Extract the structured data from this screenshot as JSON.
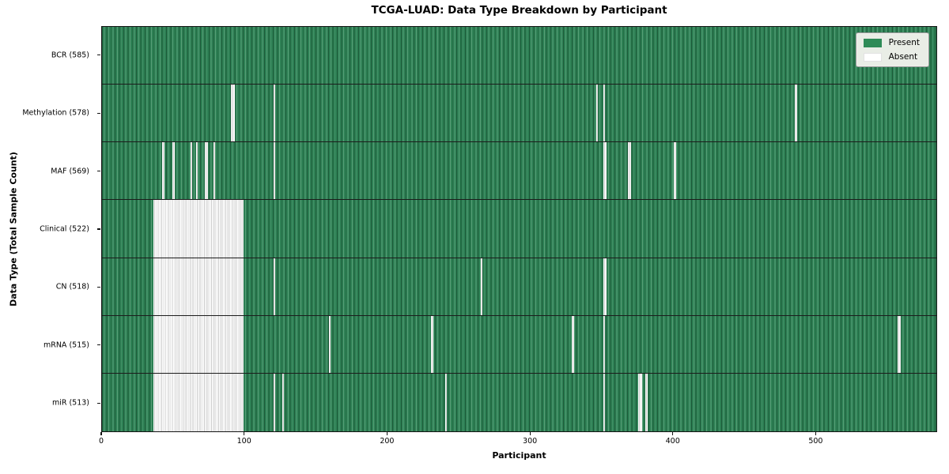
{
  "title": "TCGA-LUAD: Data Type Breakdown by Participant",
  "xlabel": "Participant",
  "ylabel": "Data Type (Total Sample Count)",
  "legend": {
    "present_label": "Present",
    "absent_label": "Absent"
  },
  "colors": {
    "present_green": "#2e8b57",
    "present_green_dark": "#1d5a39",
    "present_green_light": "#579e77",
    "absent_white": "#ffffff",
    "absent_edge": "#cccccc",
    "legend_background": "#e9ede6",
    "axis_line": "#141414"
  },
  "x_axis": {
    "ticks": [
      0,
      100,
      200,
      300,
      400,
      500
    ],
    "max": 585
  },
  "chart_data": {
    "type": "heatmap",
    "title": "TCGA-LUAD: Data Type Breakdown by Participant",
    "xlabel": "Participant",
    "ylabel": "Data Type (Total Sample Count)",
    "x_range": [
      0,
      585
    ],
    "grid": false,
    "legend_entries": [
      "Present",
      "Absent"
    ],
    "legend_position": "upper right",
    "rows": [
      {
        "name": "BCR",
        "label": "BCR (585)",
        "total": 585,
        "absent_ranges": []
      },
      {
        "name": "Methylation",
        "label": "Methylation (578)",
        "total": 578,
        "absent_ranges": [
          [
            90,
            92
          ],
          [
            120,
            120
          ],
          [
            346,
            346
          ],
          [
            351,
            351
          ],
          [
            485,
            485
          ]
        ]
      },
      {
        "name": "MAF",
        "label": "MAF (569)",
        "total": 569,
        "absent_ranges": [
          [
            42,
            43
          ],
          [
            49,
            50
          ],
          [
            62,
            62
          ],
          [
            66,
            66
          ],
          [
            72,
            73
          ],
          [
            78,
            78
          ],
          [
            120,
            120
          ],
          [
            351,
            352
          ],
          [
            368,
            369
          ],
          [
            400,
            401
          ]
        ]
      },
      {
        "name": "Clinical",
        "label": "Clinical (522)",
        "total": 522,
        "absent_ranges": [
          [
            36,
            98
          ]
        ]
      },
      {
        "name": "CN",
        "label": "CN (518)",
        "total": 518,
        "absent_ranges": [
          [
            36,
            98
          ],
          [
            120,
            120
          ],
          [
            265,
            265
          ],
          [
            351,
            352
          ]
        ]
      },
      {
        "name": "mRNA",
        "label": "mRNA (515)",
        "total": 515,
        "absent_ranges": [
          [
            36,
            98
          ],
          [
            159,
            159
          ],
          [
            230,
            231
          ],
          [
            329,
            329
          ],
          [
            351,
            351
          ],
          [
            557,
            558
          ]
        ]
      },
      {
        "name": "miR",
        "label": "miR (513)",
        "total": 513,
        "absent_ranges": [
          [
            36,
            98
          ],
          [
            120,
            120
          ],
          [
            126,
            126
          ],
          [
            240,
            240
          ],
          [
            351,
            351
          ],
          [
            375,
            377
          ],
          [
            380,
            381
          ]
        ]
      }
    ]
  }
}
